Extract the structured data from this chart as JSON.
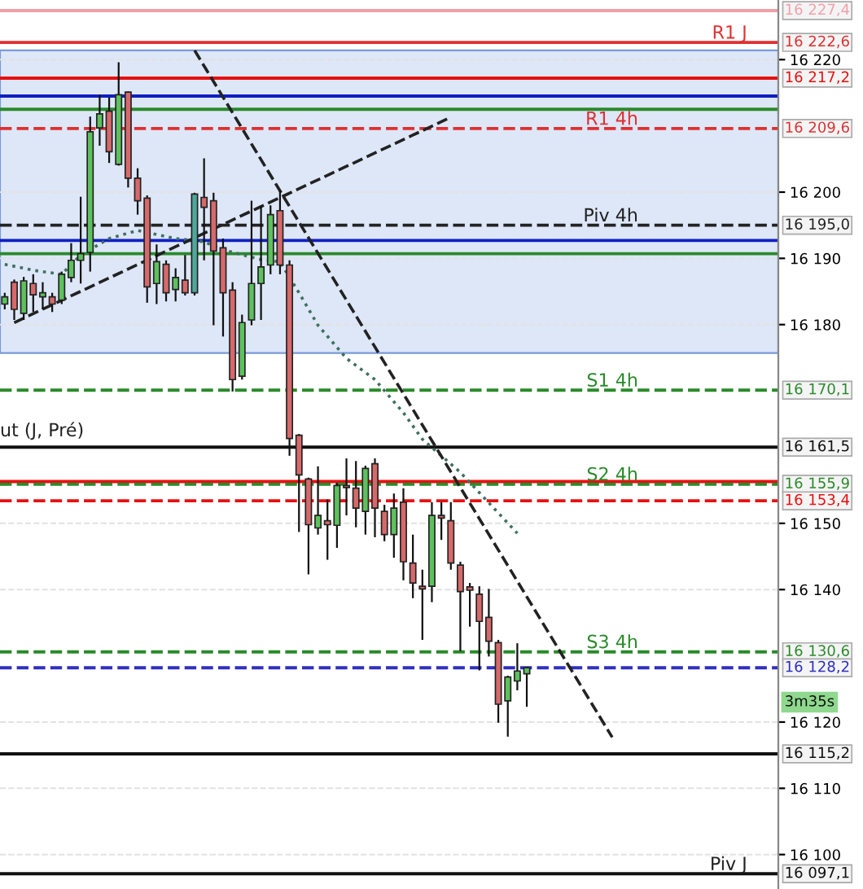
{
  "chart_data": {
    "type": "candlestick",
    "categories": [
      null,
      null,
      null,
      null,
      null,
      null,
      null,
      null,
      null,
      null,
      null,
      null,
      null,
      null,
      null,
      null,
      null,
      null,
      null,
      null,
      null,
      null,
      null,
      null,
      null,
      null,
      null,
      null,
      null,
      null,
      null,
      null,
      null,
      null,
      null,
      null,
      null,
      null,
      null,
      null,
      null,
      null,
      null,
      null,
      null,
      null,
      null,
      null,
      null,
      null,
      null,
      null,
      null,
      null,
      null,
      null,
      null,
      null,
      null,
      null,
      null,
      null,
      null,
      null,
      null,
      null,
      null,
      null,
      null,
      null,
      null,
      null,
      null,
      null,
      null,
      null,
      null,
      null,
      null,
      null,
      null,
      null
    ],
    "ohlc": [
      [
        16183.1,
        16184.8,
        16182.3,
        16184.2
      ],
      [
        16186.4,
        16186.8,
        16180.7,
        16182.3
      ],
      [
        16181.7,
        16187.2,
        16180.7,
        16186.6
      ],
      [
        16186.2,
        16187.6,
        16181.9,
        16184.5
      ],
      [
        16184.2,
        16186.4,
        16182.3,
        16184.8
      ],
      [
        16184.2,
        16184.8,
        16181.9,
        16183.1
      ],
      [
        16183.7,
        16188.0,
        16183.1,
        16187.6
      ],
      [
        16187.1,
        16192.3,
        16186.4,
        16189.7
      ],
      [
        16189.7,
        16199.3,
        16186.2,
        16190.7
      ],
      [
        16190.9,
        16211.4,
        16188.0,
        16209.1
      ],
      [
        16209.7,
        16214.7,
        16207.0,
        16211.8
      ],
      [
        16212.2,
        16214.3,
        16204.4,
        16206.1
      ],
      [
        16204.2,
        16219.6,
        16204.0,
        16214.7
      ],
      [
        16215.1,
        16215.2,
        16200.7,
        16202.1
      ],
      [
        16202.1,
        16203.6,
        16196.6,
        16198.7
      ],
      [
        16199.1,
        16199.5,
        16183.3,
        16185.7
      ],
      [
        16186.2,
        16192.1,
        16183.1,
        16189.5
      ],
      [
        16189.1,
        16189.7,
        16183.5,
        16184.8
      ],
      [
        16185.3,
        16188.5,
        16183.5,
        16187.1
      ],
      [
        16186.7,
        16190.5,
        16184.4,
        16184.8
      ],
      [
        16184.8,
        16199.9,
        16184.4,
        16199.7
      ],
      [
        16199.2,
        16205.1,
        16189.7,
        16197.7
      ],
      [
        16198.7,
        16199.9,
        16179.9,
        16191.1
      ],
      [
        16191.6,
        16193.0,
        16178.2,
        16184.8
      ],
      [
        16185.2,
        16186.4,
        16169.9,
        16171.7
      ],
      [
        16172.2,
        16181.5,
        16171.7,
        16180.3
      ],
      [
        16180.7,
        16198.7,
        16179.9,
        16186.2
      ],
      [
        16186.2,
        16197.9,
        16180.7,
        16188.7
      ],
      [
        16189.0,
        16198.0,
        16187.6,
        16196.6
      ],
      [
        16197.2,
        16200.2,
        16187.6,
        16189.0
      ],
      [
        16189.0,
        16189.7,
        16160.2,
        16162.8
      ],
      [
        16163.3,
        16163.5,
        16148.7,
        16157.3
      ],
      [
        16156.7,
        16156.9,
        16142.3,
        16149.8
      ],
      [
        16149.3,
        16158.6,
        16148.3,
        16151.2
      ],
      [
        16150.4,
        16153.6,
        16144.5,
        16149.8
      ],
      [
        16149.7,
        16156.1,
        16146.3,
        16155.7
      ],
      [
        16155.7,
        16159.8,
        16151.2,
        16155.4
      ],
      [
        16155.3,
        16159.4,
        16149.4,
        16152.3
      ],
      [
        16151.8,
        16158.7,
        16148.3,
        16158.3
      ],
      [
        16159.0,
        16159.8,
        16147.9,
        16152.3
      ],
      [
        16151.8,
        16152.8,
        16147.3,
        16148.3
      ],
      [
        16148.3,
        16154.5,
        16144.8,
        16152.3
      ],
      [
        16153.2,
        16155.3,
        16141.4,
        16144.2
      ],
      [
        16144.0,
        16148.3,
        16138.7,
        16141.0
      ],
      [
        16140.5,
        16143.0,
        16132.4,
        16140.1
      ],
      [
        16140.5,
        16153.2,
        16138.1,
        16151.2
      ],
      [
        16151.2,
        16153.2,
        16147.5,
        16150.8
      ],
      [
        16150.4,
        16153.2,
        16143.0,
        16144.0
      ],
      [
        16143.7,
        16144.2,
        16130.7,
        16139.7
      ],
      [
        16140.4,
        16141.0,
        16134.4,
        16139.9
      ],
      [
        16139.3,
        16140.5,
        16127.8,
        16135.2
      ],
      [
        16135.8,
        16140.1,
        16129.9,
        16132.2
      ],
      [
        16132.0,
        16132.4,
        16119.9,
        16122.7
      ],
      [
        16123.2,
        16127.0,
        16117.8,
        16126.8
      ],
      [
        16126.2,
        16131.9,
        16124.8,
        16127.7
      ],
      [
        16127.3,
        16128.3,
        16122.3,
        16128.2
      ],
      null,
      null,
      null,
      null,
      null,
      null,
      null,
      null,
      null,
      null,
      null,
      null,
      null,
      null,
      null,
      null,
      null,
      null,
      null,
      null,
      null,
      null,
      null,
      null,
      null,
      null
    ],
    "colors": [
      "#5dc15d",
      "#d6696b",
      "#5dc15d",
      "#d6696b",
      "#5dc15d",
      "#d6696b",
      "#5dc15d",
      "#5dc15d",
      "#5dc15d",
      "#5dc15d",
      "#5dc15d",
      "#d6696b",
      "#5dc15d",
      "#d6696b",
      "#d6696b",
      "#d6696b",
      "#5dc15d",
      "#d6696b",
      "#5dc15d",
      "#d6696b",
      "#4fa89a",
      "#d6696b",
      "#d6696b",
      "#d6696b",
      "#d6696b",
      "#5dc15d",
      "#5dc15d",
      "#5dc15d",
      "#5dc15d",
      "#d6696b",
      "#d6696b",
      "#d6696b",
      "#d6696b",
      "#5dc15d",
      "#d6696b",
      "#5dc15d",
      "#d6696b",
      "#d6696b",
      "#5dc15d",
      "#d6696b",
      "#d6696b",
      "#5dc15d",
      "#d6696b",
      "#d6696b",
      "#d6696b",
      "#5dc15d",
      "#d6696b",
      "#d6696b",
      "#d6696b",
      "#d6696b",
      "#d6696b",
      "#d6696b",
      "#d6696b",
      "#5dc15d",
      "#5dc15d",
      "#5dc15d",
      null,
      null,
      null,
      null,
      null,
      null,
      null,
      null,
      null,
      null,
      null,
      null,
      null,
      null,
      null,
      null,
      null,
      null,
      null,
      null,
      null,
      null,
      null,
      null,
      null,
      null
    ],
    "series": [
      {
        "type": "line",
        "color": "#3f6f60",
        "line_style": "dotted",
        "values": [
          16189.1,
          null,
          null,
          16188.2,
          null,
          null,
          16187.6,
          null,
          16190.5,
          null,
          null,
          16193.0,
          null,
          null,
          16194.2,
          null,
          null,
          null,
          16193.0,
          null,
          null,
          16192.5,
          null,
          16191.3,
          null,
          null,
          null,
          16189.8,
          null,
          16189.5,
          null,
          16184.8,
          null,
          16179.9,
          null,
          null,
          16174.9,
          null,
          null,
          16171.7,
          null,
          null,
          16166.7,
          null,
          16162.7,
          null,
          null,
          null,
          16157.7,
          null,
          null,
          null,
          null,
          null,
          16148.5,
          null,
          null,
          null,
          null,
          null,
          null,
          null,
          null,
          null,
          null,
          null,
          null,
          null,
          null,
          null,
          null,
          null,
          null,
          null,
          null,
          null,
          null,
          null,
          null,
          null,
          null,
          null
        ]
      },
      {
        "type": "line",
        "color": "#222222",
        "line_style": "dashed",
        "values": [
          null,
          null,
          null,
          null,
          null,
          null,
          null,
          null,
          null,
          null,
          null,
          null,
          null,
          null,
          null,
          null,
          null,
          null,
          null,
          null,
          16221.4,
          null,
          null,
          null,
          null,
          null,
          null,
          null,
          null,
          null,
          null,
          null,
          null,
          null,
          null,
          null,
          null,
          null,
          null,
          null,
          null,
          null,
          null,
          null,
          null,
          null,
          null,
          null,
          null,
          null,
          null,
          null,
          null,
          null,
          null,
          null,
          null,
          null,
          null,
          null,
          null,
          null,
          null,
          null,
          16117.7,
          null,
          null,
          null,
          null,
          null,
          null,
          null,
          null,
          null,
          null,
          null,
          null,
          null,
          null,
          null,
          null,
          null
        ]
      },
      {
        "type": "line",
        "color": "#222222",
        "line_style": "dashed",
        "values": [
          null,
          16180.3,
          null,
          null,
          null,
          null,
          null,
          null,
          null,
          null,
          null,
          null,
          null,
          null,
          null,
          null,
          null,
          null,
          null,
          null,
          null,
          null,
          null,
          null,
          null,
          null,
          null,
          null,
          null,
          null,
          null,
          null,
          null,
          null,
          null,
          null,
          null,
          null,
          null,
          null,
          null,
          null,
          null,
          null,
          null,
          null,
          null,
          16211.3,
          null,
          null,
          null,
          null,
          null,
          null,
          null,
          null,
          null,
          null,
          null,
          null,
          null,
          null,
          null,
          null,
          null,
          null,
          null,
          null,
          null,
          null,
          null,
          null,
          null,
          null,
          null,
          null,
          null,
          null,
          null,
          null,
          null,
          null
        ]
      }
    ],
    "ylim": [
      16094.8,
      16229.0
    ],
    "yticks": [
      {
        "value": 16100,
        "label": "16 100"
      },
      {
        "value": 16110,
        "label": "16 110"
      },
      {
        "value": 16120,
        "label": "16 120"
      },
      {
        "value": 16140,
        "label": "16 140"
      },
      {
        "value": 16150,
        "label": "16 150"
      },
      {
        "value": 16180,
        "label": "16 180"
      },
      {
        "value": 16190,
        "label": "16 190"
      },
      {
        "value": 16200,
        "label": "16 200"
      },
      {
        "value": 16220,
        "label": "16 220"
      }
    ],
    "grid": "y",
    "tick_labels": "y",
    "bands": [
      {
        "axis": "y",
        "from": 16175.7,
        "to": 16221.4,
        "color": "#dde7f8"
      }
    ],
    "ref_lines": [
      {
        "axis": "y",
        "value": 16227.4,
        "label": "16 227,4",
        "color": "#f2a0a8",
        "line_style": "solid"
      },
      {
        "axis": "y",
        "value": 16222.6,
        "label": "16 222,6",
        "color": "#e03030",
        "line_style": "solid"
      },
      {
        "axis": "y",
        "value": 16217.2,
        "label": "16 217,2",
        "color": "#e81010",
        "line_style": "solid"
      },
      {
        "axis": "y",
        "value": 16214.5,
        "color": "#1020c0",
        "line_style": "solid"
      },
      {
        "axis": "y",
        "value": 16212.5,
        "color": "#2a8a2a",
        "line_style": "solid"
      },
      {
        "axis": "y",
        "value": 16209.6,
        "label": "16 209,6",
        "color": "#e03030",
        "line_style": "dashed"
      },
      {
        "axis": "y",
        "value": 16195.0,
        "label": "16 195,0",
        "color": "#222222",
        "line_style": "dashed"
      },
      {
        "axis": "y",
        "value": 16192.7,
        "color": "#1020c0",
        "line_style": "solid"
      },
      {
        "axis": "y",
        "value": 16190.7,
        "color": "#2a8a2a",
        "line_style": "solid"
      },
      {
        "axis": "y",
        "value": 16170.1,
        "label": "16 170,1",
        "color": "#2a8a2a",
        "line_style": "dashed"
      },
      {
        "axis": "y",
        "value": 16161.5,
        "label": "16 161,5",
        "color": "#111111",
        "line_style": "solid"
      },
      {
        "axis": "y",
        "value": 16156.3,
        "color": "#e81010",
        "line_style": "solid"
      },
      {
        "axis": "y",
        "value": 16155.9,
        "label": "16 155,9",
        "color": "#2a8a2a",
        "line_style": "dashed"
      },
      {
        "axis": "y",
        "value": 16153.4,
        "label": "16 153,4",
        "color": "#e81010",
        "line_style": "dashed"
      },
      {
        "axis": "y",
        "value": 16130.6,
        "label": "16 130,6",
        "color": "#2a8a2a",
        "line_style": "dashed"
      },
      {
        "axis": "y",
        "value": 16128.2,
        "label": "16 128,2",
        "color": "#3030c0",
        "line_style": "dashed"
      },
      {
        "axis": "y",
        "value": 16115.2,
        "label": "16 115,2",
        "color": "#111111",
        "line_style": "solid"
      },
      {
        "axis": "y",
        "value": 16097.1,
        "label": "16 097,1",
        "color": "#111111",
        "line_style": "solid"
      }
    ],
    "annotations": [
      {
        "text": "R1 J",
        "y": 16222.6
      },
      {
        "text": "R1 4h",
        "y": 16209.6
      },
      {
        "text": "Piv 4h",
        "y": 16195.0
      },
      {
        "text": "S1 4h",
        "y": 16170.1
      },
      {
        "text": "S2 4h",
        "y": 16155.9
      },
      {
        "text": "S3 4h",
        "y": 16130.6
      },
      {
        "text": "Piv J",
        "y": 16097.1
      },
      "ut (J, Pré)",
      {
        "text": "3m35s",
        "y": 16123.0
      }
    ]
  }
}
